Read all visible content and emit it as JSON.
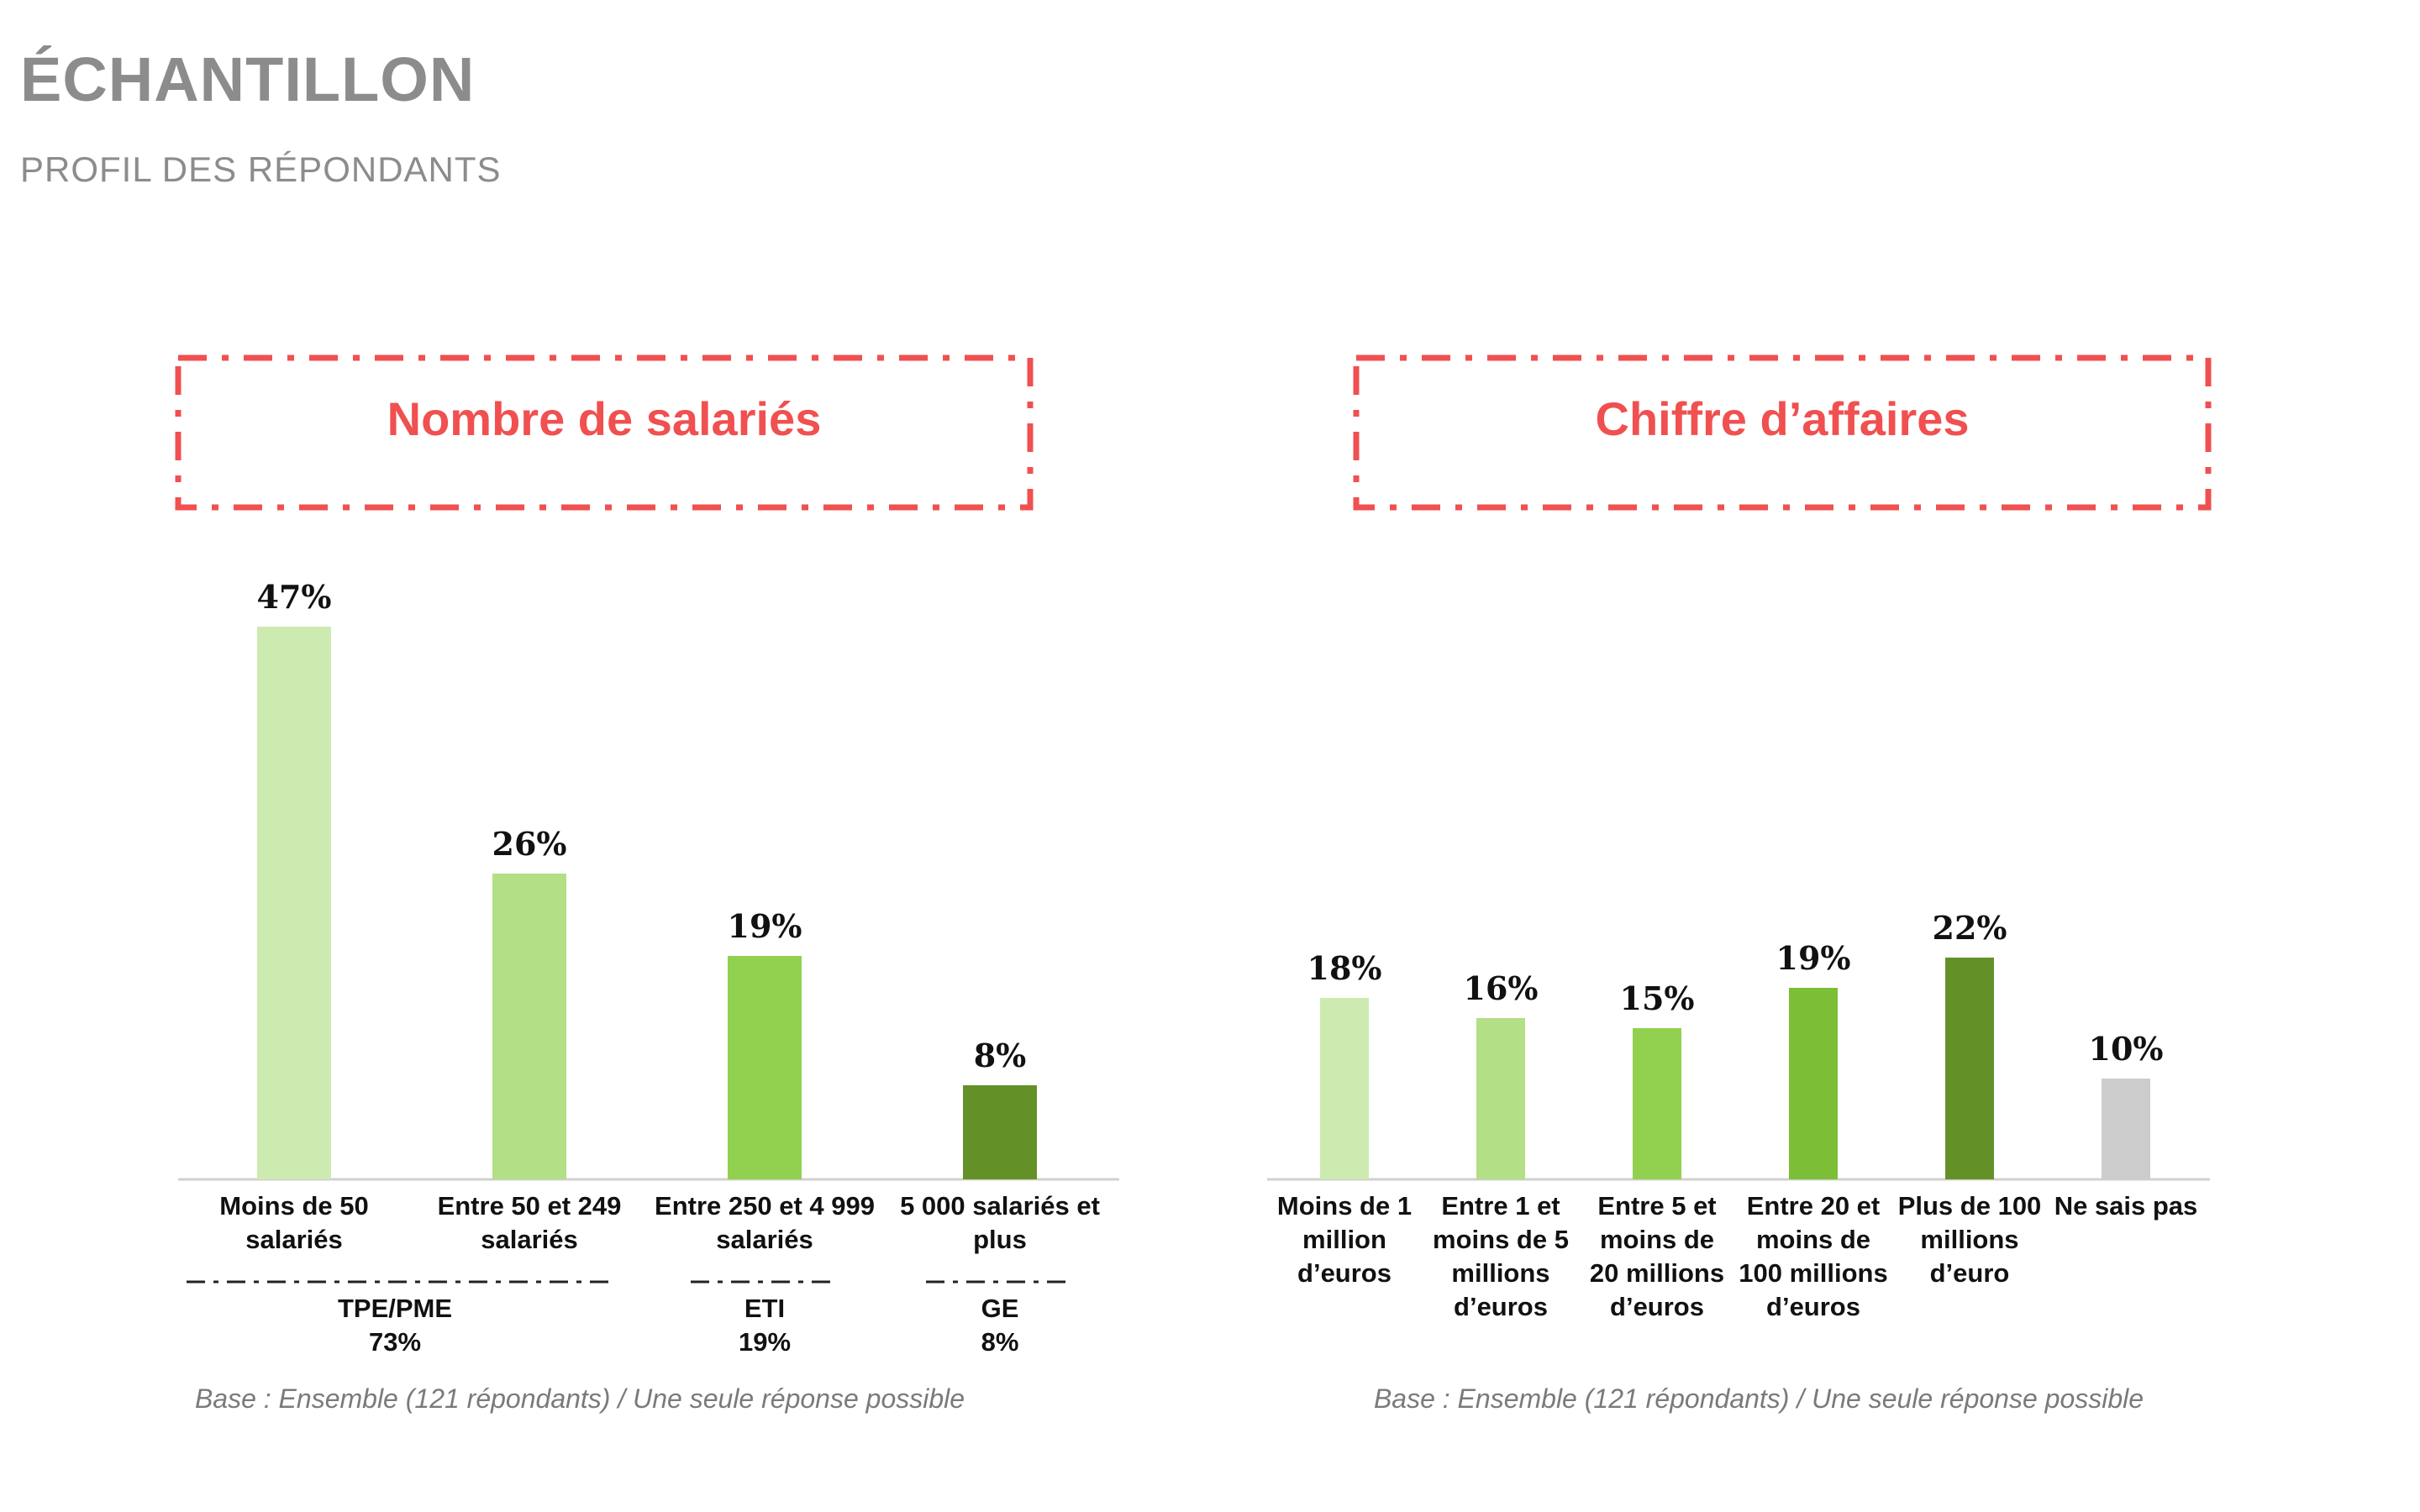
{
  "page": {
    "title": "ÉCHANTILLON",
    "subtitle": "PROFIL DES RÉPONDANTS"
  },
  "colors": {
    "accent": "#f05050",
    "title_gray": "#8c8c8c",
    "greens": [
      "#cdebb0",
      "#b3df86",
      "#92d050",
      "#7cbf36",
      "#639128"
    ],
    "gray_bar": "#cccccc"
  },
  "chart_data": [
    {
      "type": "bar",
      "title": "Nombre de salariés",
      "categories": [
        [
          "Moins de 50",
          "salariés"
        ],
        [
          "Entre 50 et 249",
          "salariés"
        ],
        [
          "Entre 250 et 4 999",
          "salariés"
        ],
        [
          "5 000 salariés et",
          "plus"
        ]
      ],
      "values": [
        47,
        26,
        19,
        8
      ],
      "value_labels": [
        "47%",
        "26%",
        "19%",
        "8%"
      ],
      "bar_colors": [
        "#cdebb0",
        "#b3df86",
        "#92d050",
        "#639128"
      ],
      "groups": [
        {
          "lines": [
            "TPE/PME",
            "73%"
          ],
          "from": 0,
          "to": 1
        },
        {
          "lines": [
            "ETI",
            "19%"
          ],
          "from": 2,
          "to": 2
        },
        {
          "lines": [
            "GE",
            "8%"
          ],
          "from": 3,
          "to": 3
        }
      ],
      "note": "Base : Ensemble (121 répondants) / Une seule réponse possible"
    },
    {
      "type": "bar",
      "title": "Chiffre d’affaires",
      "categories": [
        [
          "Moins de 1",
          "million",
          "d’euros"
        ],
        [
          "Entre 1 et",
          "moins de 5",
          "millions",
          "d’euros"
        ],
        [
          "Entre 5 et",
          "moins de",
          "20 millions",
          "d’euros"
        ],
        [
          "Entre 20 et",
          "moins de",
          "100 millions",
          "d’euros"
        ],
        [
          "Plus de 100",
          "millions",
          "d’euro"
        ],
        [
          "Ne sais pas"
        ]
      ],
      "values": [
        18,
        16,
        15,
        19,
        22,
        10
      ],
      "value_labels": [
        "18%",
        "16%",
        "15%",
        "19%",
        "22%",
        "10%"
      ],
      "bar_colors": [
        "#cdebb0",
        "#b3df86",
        "#92d050",
        "#7cbf36",
        "#639128",
        "#cccccc"
      ],
      "note": "Base : Ensemble (121 répondants) / Une seule réponse possible"
    }
  ]
}
